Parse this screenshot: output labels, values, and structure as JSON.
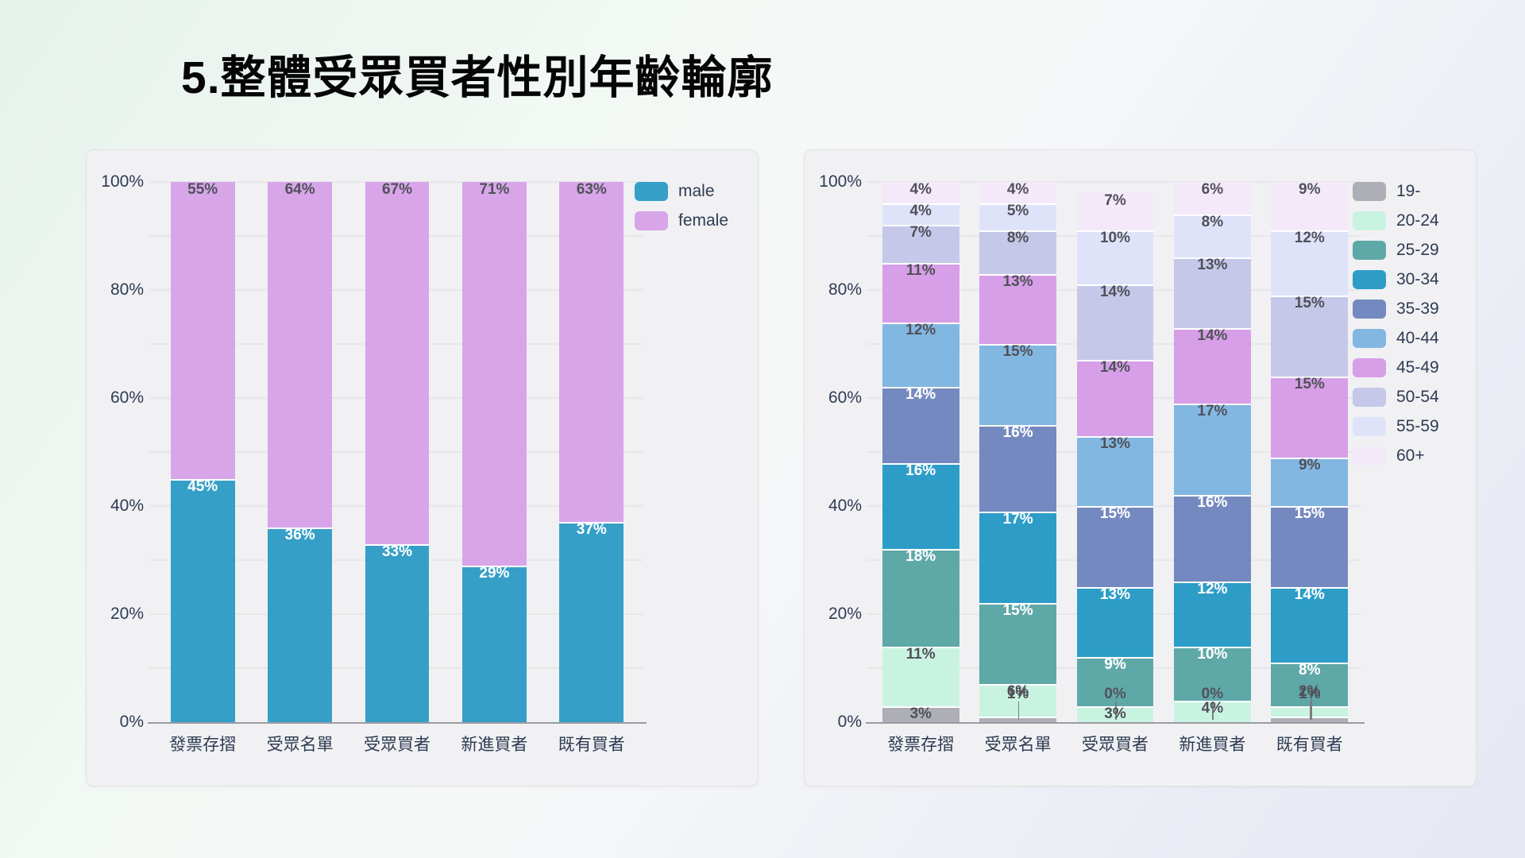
{
  "page": {
    "title": "5.整體受眾買者性別年齡輪廓"
  },
  "chart_data": [
    {
      "name": "gender-stacked-bar",
      "type": "bar",
      "stacked": true,
      "grid": true,
      "legend_position": "top-right",
      "ylim": [
        0,
        100
      ],
      "y_ticks": [
        "0%",
        "20%",
        "40%",
        "60%",
        "80%",
        "100%"
      ],
      "categories": [
        "發票存摺",
        "受眾名單",
        "受眾買者",
        "新進買者",
        "既有買者"
      ],
      "bar_frac": 0.66,
      "series": [
        {
          "name": "male",
          "color": "#359fc7",
          "label_color": "#ffffff",
          "values": [
            45,
            36,
            33,
            29,
            37
          ]
        },
        {
          "name": "female",
          "color": "#d8a5e9",
          "label_color": "#505059",
          "values": [
            55,
            64,
            67,
            71,
            63
          ]
        }
      ]
    },
    {
      "name": "age-stacked-bar",
      "type": "bar",
      "stacked": true,
      "grid": true,
      "legend_position": "top-right",
      "ylim": [
        0,
        100
      ],
      "y_ticks": [
        "0%",
        "20%",
        "40%",
        "60%",
        "80%",
        "100%"
      ],
      "categories": [
        "發票存摺",
        "受眾名單",
        "受眾買者",
        "新進買者",
        "既有買者"
      ],
      "bar_frac": 0.79,
      "series": [
        {
          "name": "19-",
          "color": "#aeaeb6",
          "label_color": "#505059",
          "values": [
            3,
            1,
            0,
            0,
            1
          ]
        },
        {
          "name": "20-24",
          "color": "#c9f3e1",
          "label_color": "#505059",
          "values": [
            11,
            6,
            3,
            4,
            2
          ]
        },
        {
          "name": "25-29",
          "color": "#5fa8a8",
          "label_color": "#ffffff",
          "values": [
            18,
            15,
            9,
            10,
            8
          ]
        },
        {
          "name": "30-34",
          "color": "#2d9dc8",
          "label_color": "#ffffff",
          "values": [
            16,
            17,
            13,
            12,
            14
          ]
        },
        {
          "name": "35-39",
          "color": "#7489bf",
          "label_color": "#ffffff",
          "values": [
            14,
            16,
            15,
            16,
            15
          ]
        },
        {
          "name": "40-44",
          "color": "#82b7e2",
          "label_color": "#505059",
          "values": [
            12,
            15,
            13,
            17,
            9
          ]
        },
        {
          "name": "45-49",
          "color": "#d79fe8",
          "label_color": "#505059",
          "values": [
            11,
            13,
            14,
            14,
            15
          ]
        },
        {
          "name": "50-54",
          "color": "#c6c8e9",
          "label_color": "#505059",
          "values": [
            7,
            8,
            14,
            13,
            15
          ]
        },
        {
          "name": "55-59",
          "color": "#dfe3fa",
          "label_color": "#505059",
          "values": [
            4,
            5,
            10,
            8,
            12
          ]
        },
        {
          "name": "60+",
          "color": "#f3e9f9",
          "label_color": "#505059",
          "values": [
            4,
            4,
            7,
            6,
            9
          ]
        }
      ]
    }
  ]
}
